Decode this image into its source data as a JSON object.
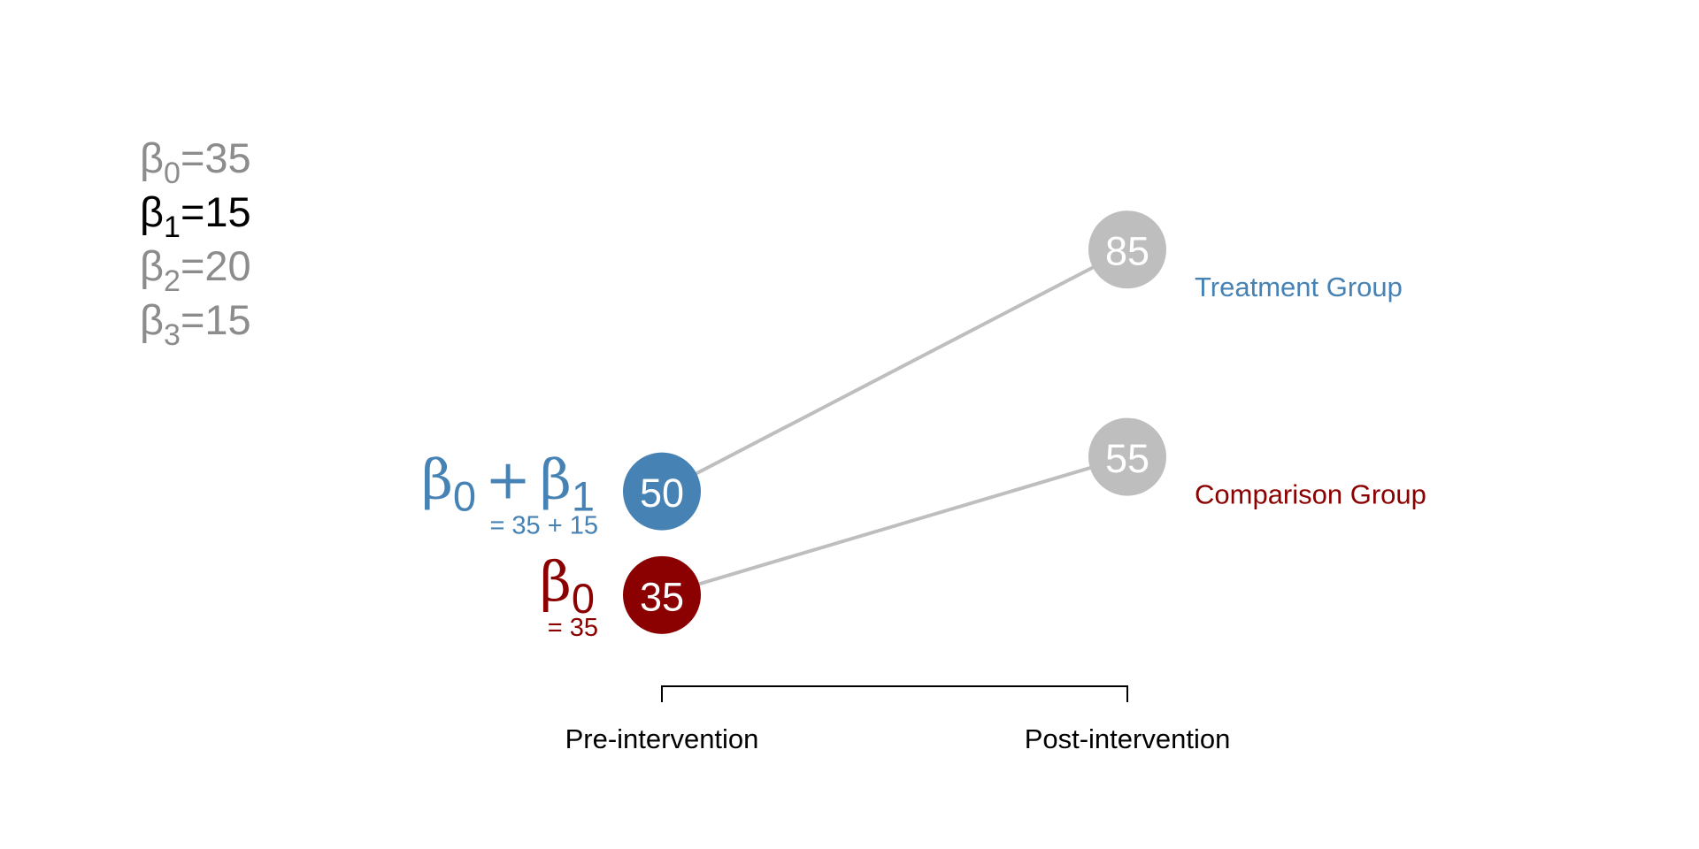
{
  "chart_data": {
    "type": "line",
    "categories": [
      "Pre-intervention",
      "Post-intervention"
    ],
    "series": [
      {
        "name": "Treatment Group",
        "values": [
          50,
          85
        ],
        "color": "#4682B4",
        "point_colors": [
          "#4682B4",
          "#BEBEBE"
        ]
      },
      {
        "name": "Comparison Group",
        "values": [
          35,
          55
        ],
        "color": "#8B0000",
        "point_colors": [
          "#8B0000",
          "#BEBEBE"
        ]
      }
    ],
    "ylim": [
      20,
      100
    ],
    "grid": false,
    "line_color": "#BEBEBE"
  },
  "coefficients": [
    {
      "symbol": "β",
      "sub": "0",
      "value": "=35",
      "color": "#8C8C8C"
    },
    {
      "symbol": "β",
      "sub": "1",
      "value": "=15",
      "color": "#000000"
    },
    {
      "symbol": "β",
      "sub": "2",
      "value": "=20",
      "color": "#8C8C8C"
    },
    {
      "symbol": "β",
      "sub": "3",
      "value": "=15",
      "color": "#8C8C8C"
    }
  ],
  "annotations": {
    "treatment_pre": {
      "b1": "β",
      "s1": "0",
      "plus": "+",
      "b2": "β",
      "s2": "1",
      "detail": "= 35 + 15",
      "color": "#4682B4"
    },
    "comparison_pre": {
      "b1": "β",
      "s1": "0",
      "detail": "= 35",
      "color": "#8B0000"
    }
  }
}
